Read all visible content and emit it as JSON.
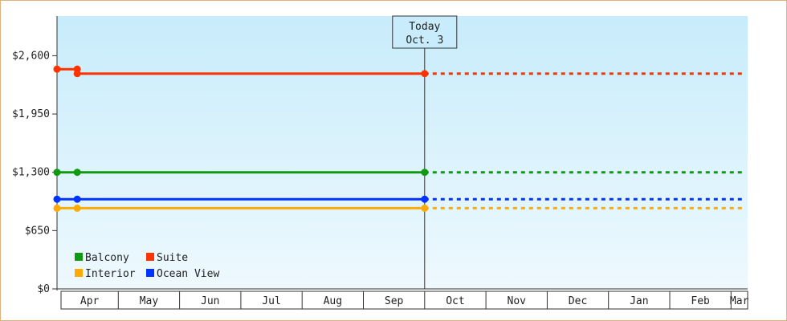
{
  "chart_data": {
    "type": "line",
    "title": "",
    "xlabel": "",
    "ylabel": "",
    "ylim": [
      0,
      3042
    ],
    "y_ticks": [
      0,
      650,
      1300,
      1950,
      2600
    ],
    "y_tick_labels": [
      "$0",
      "$650",
      "$1,300",
      "$1,950",
      "$2,600"
    ],
    "month_labels": [
      "Apr",
      "May",
      "Jun",
      "Jul",
      "Aug",
      "Sep",
      "Oct",
      "Nov",
      "Dec",
      "Jan",
      "Feb",
      "Mar"
    ],
    "today_marker": {
      "label_line1": "Today",
      "label_line2": "Oct. 3",
      "month_index": 6
    },
    "legend_position": "bottom-left",
    "grid": false,
    "series": [
      {
        "name": "Suite",
        "color": "#ff3300",
        "points": [
          {
            "m": 0.0,
            "v": 2450
          },
          {
            "m": 0.33,
            "v": 2450
          },
          {
            "m": 0.33,
            "v": 2400
          },
          {
            "m": 6.0,
            "v": 2400
          }
        ],
        "forecast_value": 2400
      },
      {
        "name": "Balcony",
        "color": "#119911",
        "points": [
          {
            "m": 0.0,
            "v": 1300
          },
          {
            "m": 0.33,
            "v": 1300
          },
          {
            "m": 6.0,
            "v": 1300
          }
        ],
        "forecast_value": 1300
      },
      {
        "name": "Ocean View",
        "color": "#0033ff",
        "points": [
          {
            "m": 0.0,
            "v": 1000
          },
          {
            "m": 0.33,
            "v": 1000
          },
          {
            "m": 6.0,
            "v": 1000
          }
        ],
        "forecast_value": 1000
      },
      {
        "name": "Interior",
        "color": "#ffaa00",
        "points": [
          {
            "m": 0.0,
            "v": 900
          },
          {
            "m": 0.33,
            "v": 900
          },
          {
            "m": 6.0,
            "v": 900
          }
        ],
        "forecast_value": 900
      }
    ],
    "legend": [
      [
        "Balcony",
        "Suite"
      ],
      [
        "Interior",
        "Ocean View"
      ]
    ]
  }
}
